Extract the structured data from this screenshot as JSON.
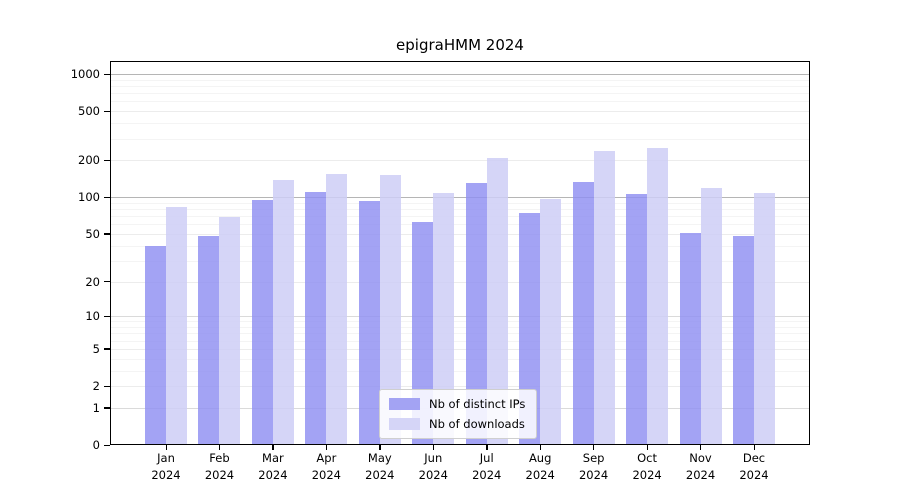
{
  "figure": {
    "background": "#ffffff"
  },
  "chart_data": {
    "type": "bar",
    "title": "epigraHMM 2024",
    "categories": [
      "Jan",
      "Feb",
      "Mar",
      "Apr",
      "May",
      "Jun",
      "Jul",
      "Aug",
      "Sep",
      "Oct",
      "Nov",
      "Dec"
    ],
    "x_year": "2024",
    "series": [
      {
        "name": "Nb of distinct IPs",
        "color": "#a3a3f3",
        "values": [
          39,
          47,
          93,
          109,
          91,
          61,
          128,
          73,
          130,
          105,
          50,
          47
        ]
      },
      {
        "name": "Nb of downloads",
        "color": "#d5d5f7",
        "values": [
          81,
          68,
          136,
          153,
          148,
          107,
          203,
          95,
          235,
          245,
          116,
          106
        ]
      }
    ],
    "xlabel": "",
    "ylabel": "",
    "yscale": "log1p",
    "yticks": [
      0,
      1,
      2,
      5,
      10,
      20,
      50,
      100,
      200,
      500,
      1000
    ],
    "minor_gridline_values": [
      3,
      4,
      6,
      7,
      8,
      9,
      30,
      40,
      60,
      70,
      80,
      90,
      300,
      400,
      600,
      700,
      800,
      900
    ],
    "ylim": [
      0,
      1275
    ],
    "grid": "both",
    "legend_position": "lower-center-inside",
    "bar_colors": {
      "distinct_ips": "#a3a3f3",
      "downloads": "#d5d5f7"
    },
    "axis_color": "#000000"
  }
}
